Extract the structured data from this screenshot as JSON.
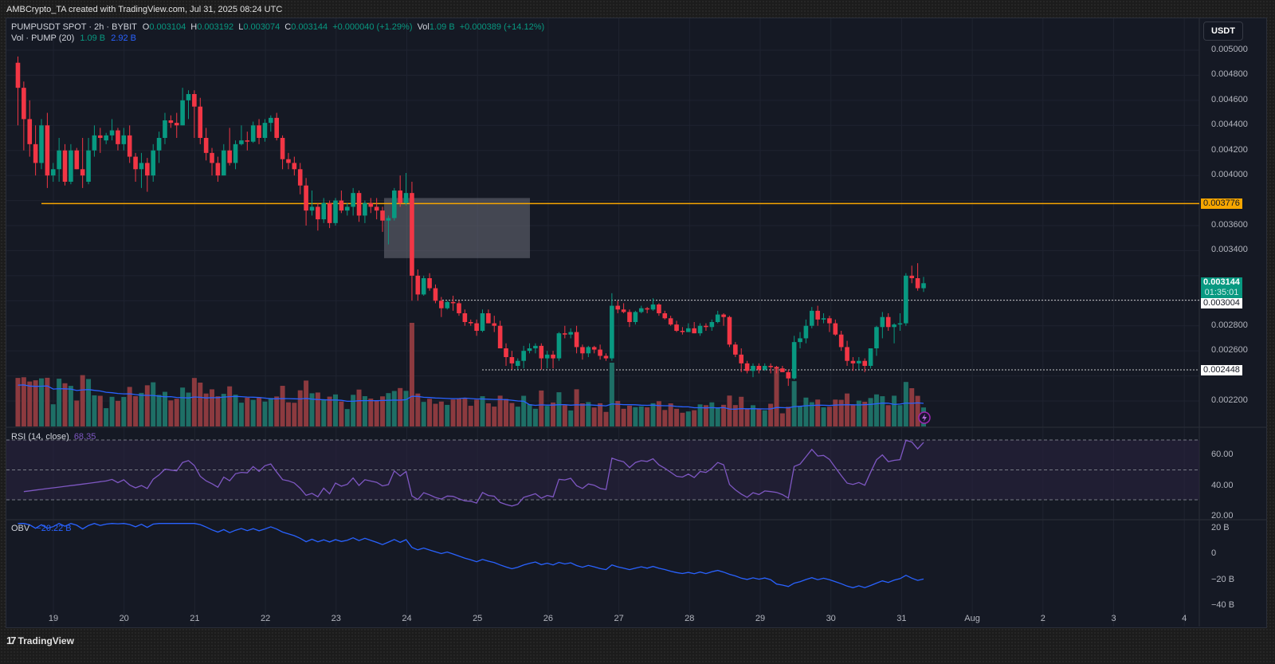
{
  "header": {
    "attribution": "AMBCrypto_TA created with TradingView.com, Jul 31, 2025 08:24 UTC"
  },
  "legend": {
    "symbol": "PUMPUSDT SPOT · 2h · BYBIT",
    "o_label": "O",
    "o": "0.003104",
    "h_label": "H",
    "h": "0.003192",
    "l_label": "L",
    "l": "0.003074",
    "c_label": "C",
    "c": "0.003144",
    "change": "+0.000040 (+1.29%)",
    "vol_label": "Vol",
    "vol": "1.09 B",
    "vol_change": "+0.000389 (+14.12%)",
    "vol_indicator": "Vol · PUMP (20)",
    "vol_value": "1.09 B",
    "vol_ma": "2.92 B"
  },
  "price_axis": {
    "unit": "USDT",
    "ticks": [
      "0.005000",
      "0.004800",
      "0.004600",
      "0.004400",
      "0.004200",
      "0.004000",
      "0.003600",
      "0.003400",
      "0.002800",
      "0.002600",
      "0.002200"
    ],
    "tick_values": [
      0.005,
      0.0048,
      0.0046,
      0.0044,
      0.0042,
      0.004,
      0.0036,
      0.0034,
      0.0028,
      0.0026,
      0.0022
    ],
    "tags": {
      "horizontal_line": "0.003776",
      "last_price": "0.003144",
      "countdown": "01:35:01",
      "resistance": "0.003004",
      "support": "0.002448"
    }
  },
  "rsi": {
    "label": "RSI (14, close)",
    "value": "68.35",
    "ticks": [
      "60.00",
      "40.00",
      "20.00"
    ]
  },
  "obv": {
    "label": "OBV",
    "value": "−20.22 B",
    "ticks": [
      "20 B",
      "0",
      "−20 B",
      "−40 B"
    ]
  },
  "time_axis": {
    "labels": [
      "19",
      "20",
      "21",
      "22",
      "23",
      "24",
      "25",
      "26",
      "27",
      "28",
      "29",
      "30",
      "31",
      "Aug",
      "2",
      "3",
      "4"
    ]
  },
  "footer": {
    "brand": "TradingView"
  },
  "colors": {
    "up": "#089981",
    "down": "#f23645",
    "vol_up": "#22ab94",
    "vol_down": "#f7525f",
    "hline": "#f7a600",
    "rsi": "#7e57c2",
    "obv": "#2962ff",
    "vol_ma": "#2962ff"
  },
  "chart_data": {
    "type": "candlestick",
    "title": "PUMPUSDT SPOT · 2h · BYBIT",
    "xlabel": "",
    "ylabel": "USDT",
    "ylim": [
      0.00205,
      0.0051
    ],
    "grid": true,
    "annotations": [
      {
        "type": "hline",
        "value": 0.003776,
        "color": "#f7a600",
        "from_date": "Jul 18"
      },
      {
        "type": "dotted_hline",
        "value": 0.003004,
        "from_date": "Jul 24"
      },
      {
        "type": "dotted_hline",
        "value": 0.002448,
        "from_date": "Jul 25"
      },
      {
        "type": "rect",
        "label": "gray zone",
        "y_top": 0.00382,
        "y_bottom": 0.00334,
        "from_date": "Jul 23 ~16:00",
        "to_date": "Jul 25 ~18:00"
      }
    ],
    "candles": [
      [
        0.0049,
        0.00495,
        0.0044,
        0.0047
      ],
      [
        0.0047,
        0.00475,
        0.0042,
        0.00445
      ],
      [
        0.00445,
        0.0046,
        0.00415,
        0.00425
      ],
      [
        0.00425,
        0.0044,
        0.004,
        0.0041
      ],
      [
        0.0041,
        0.00445,
        0.00405,
        0.0044
      ],
      [
        0.0044,
        0.0045,
        0.0039,
        0.004
      ],
      [
        0.004,
        0.0041,
        0.00395,
        0.00405
      ],
      [
        0.00405,
        0.0043,
        0.00395,
        0.0042
      ],
      [
        0.0042,
        0.00425,
        0.00392,
        0.00395
      ],
      [
        0.00395,
        0.00425,
        0.00393,
        0.0042
      ],
      [
        0.0042,
        0.00422,
        0.00405,
        0.00405
      ],
      [
        0.00405,
        0.0043,
        0.0039,
        0.004
      ],
      [
        0.00395,
        0.0043,
        0.00393,
        0.0042
      ],
      [
        0.0042,
        0.0044,
        0.00415,
        0.00432
      ],
      [
        0.00432,
        0.00438,
        0.00418,
        0.0043
      ],
      [
        0.00428,
        0.00434,
        0.00425,
        0.00432
      ],
      [
        0.00432,
        0.00445,
        0.00428,
        0.00436
      ],
      [
        0.00436,
        0.00438,
        0.0042,
        0.00425
      ],
      [
        0.00425,
        0.00438,
        0.0042,
        0.00432
      ],
      [
        0.00432,
        0.0044,
        0.0041,
        0.00415
      ],
      [
        0.00415,
        0.00418,
        0.00395,
        0.00405
      ],
      [
        0.00405,
        0.00418,
        0.0039,
        0.0041
      ],
      [
        0.0041,
        0.00414,
        0.00387,
        0.004
      ],
      [
        0.004,
        0.00425,
        0.00395,
        0.0042
      ],
      [
        0.0042,
        0.00435,
        0.0041,
        0.0043
      ],
      [
        0.0043,
        0.0045,
        0.00425,
        0.00444
      ],
      [
        0.00444,
        0.00448,
        0.00438,
        0.00442
      ],
      [
        0.00442,
        0.0045,
        0.0043,
        0.0044
      ],
      [
        0.0044,
        0.0047,
        0.0044,
        0.0046
      ],
      [
        0.0046,
        0.00468,
        0.00445,
        0.00465
      ],
      [
        0.00465,
        0.00468,
        0.0043,
        0.00455
      ],
      [
        0.00455,
        0.00462,
        0.00425,
        0.0043
      ],
      [
        0.0043,
        0.00438,
        0.00412,
        0.00418
      ],
      [
        0.00418,
        0.00422,
        0.004,
        0.0041
      ],
      [
        0.0041,
        0.00415,
        0.00395,
        0.004
      ],
      [
        0.004,
        0.00425,
        0.004,
        0.0042
      ],
      [
        0.0042,
        0.00438,
        0.00408,
        0.0041
      ],
      [
        0.0041,
        0.00428,
        0.00405,
        0.00425
      ],
      [
        0.00425,
        0.0044,
        0.00424,
        0.00428
      ],
      [
        0.00428,
        0.00435,
        0.0042,
        0.00427
      ],
      [
        0.00427,
        0.00443,
        0.00426,
        0.0044
      ],
      [
        0.0044,
        0.00445,
        0.00425,
        0.0043
      ],
      [
        0.0043,
        0.00445,
        0.00427,
        0.00442
      ],
      [
        0.00442,
        0.00448,
        0.00435,
        0.00446
      ],
      [
        0.00446,
        0.0045,
        0.00428,
        0.0043
      ],
      [
        0.0043,
        0.00432,
        0.00405,
        0.00413
      ],
      [
        0.00413,
        0.00418,
        0.00405,
        0.0041
      ],
      [
        0.0041,
        0.00415,
        0.004,
        0.00405
      ],
      [
        0.00405,
        0.0041,
        0.00385,
        0.00392
      ],
      [
        0.00392,
        0.00398,
        0.0036,
        0.00372
      ],
      [
        0.00372,
        0.00388,
        0.00368,
        0.00375
      ],
      [
        0.00375,
        0.00378,
        0.00356,
        0.00365
      ],
      [
        0.00365,
        0.00382,
        0.00362,
        0.00378
      ],
      [
        0.00378,
        0.0038,
        0.00358,
        0.00362
      ],
      [
        0.00362,
        0.00382,
        0.0036,
        0.0038
      ],
      [
        0.0038,
        0.00388,
        0.0037,
        0.00372
      ],
      [
        0.00372,
        0.00378,
        0.00368,
        0.00375
      ],
      [
        0.00375,
        0.0039,
        0.00368,
        0.00386
      ],
      [
        0.00386,
        0.00388,
        0.00363,
        0.00368
      ],
      [
        0.00368,
        0.0038,
        0.00362,
        0.00378
      ],
      [
        0.00378,
        0.00382,
        0.0037,
        0.00375
      ],
      [
        0.00375,
        0.00382,
        0.00365,
        0.00372
      ],
      [
        0.00372,
        0.00375,
        0.00355,
        0.00364
      ],
      [
        0.00364,
        0.00368,
        0.00345,
        0.00366
      ],
      [
        0.00366,
        0.0039,
        0.00364,
        0.00388
      ],
      [
        0.00388,
        0.004,
        0.00375,
        0.00378
      ],
      [
        0.00378,
        0.00402,
        0.00376,
        0.00386
      ],
      [
        0.00386,
        0.00395,
        0.003,
        0.0032
      ],
      [
        0.0032,
        0.00325,
        0.003,
        0.00305
      ],
      [
        0.00305,
        0.0032,
        0.00304,
        0.00318
      ],
      [
        0.00318,
        0.00322,
        0.00308,
        0.0031
      ],
      [
        0.0031,
        0.00313,
        0.00298,
        0.003
      ],
      [
        0.003,
        0.00303,
        0.00287,
        0.00294
      ],
      [
        0.00294,
        0.003,
        0.00293,
        0.00299
      ],
      [
        0.00299,
        0.00304,
        0.00292,
        0.00298
      ],
      [
        0.00298,
        0.003,
        0.00288,
        0.0029
      ],
      [
        0.0029,
        0.00293,
        0.0028,
        0.00283
      ],
      [
        0.00283,
        0.00285,
        0.0028,
        0.00282
      ],
      [
        0.00282,
        0.00285,
        0.00272,
        0.00276
      ],
      [
        0.00276,
        0.00293,
        0.00275,
        0.0029
      ],
      [
        0.0029,
        0.00293,
        0.00282,
        0.00282
      ],
      [
        0.00282,
        0.00288,
        0.00275,
        0.0028
      ],
      [
        0.0028,
        0.00284,
        0.00262,
        0.00262
      ],
      [
        0.00262,
        0.00266,
        0.00248,
        0.00255
      ],
      [
        0.00255,
        0.0026,
        0.00245,
        0.0025
      ],
      [
        0.00248,
        0.00254,
        0.00245,
        0.00252
      ],
      [
        0.00252,
        0.00264,
        0.00246,
        0.0026
      ],
      [
        0.0026,
        0.00266,
        0.00258,
        0.00262
      ],
      [
        0.00262,
        0.00266,
        0.00258,
        0.00264
      ],
      [
        0.00264,
        0.00266,
        0.00245,
        0.00254
      ],
      [
        0.00254,
        0.0026,
        0.00246,
        0.00257
      ],
      [
        0.00257,
        0.0026,
        0.00246,
        0.00254
      ],
      [
        0.00254,
        0.00275,
        0.00252,
        0.00274
      ],
      [
        0.00274,
        0.0028,
        0.0027,
        0.00273
      ],
      [
        0.00273,
        0.00278,
        0.0027,
        0.00275
      ],
      [
        0.00275,
        0.0028,
        0.00258,
        0.00263
      ],
      [
        0.00263,
        0.00265,
        0.00253,
        0.00258
      ],
      [
        0.00258,
        0.00264,
        0.00255,
        0.00263
      ],
      [
        0.00263,
        0.00264,
        0.00258,
        0.00261
      ],
      [
        0.00261,
        0.00265,
        0.00253,
        0.00256
      ],
      [
        0.00256,
        0.00258,
        0.00252,
        0.00254
      ],
      [
        0.00254,
        0.00306,
        0.00252,
        0.00296
      ],
      [
        0.00296,
        0.003,
        0.0029,
        0.00293
      ],
      [
        0.00293,
        0.00298,
        0.0029,
        0.00291
      ],
      [
        0.00291,
        0.00293,
        0.00279,
        0.00283
      ],
      [
        0.00283,
        0.00292,
        0.00281,
        0.00291
      ],
      [
        0.00291,
        0.00296,
        0.0029,
        0.00294
      ],
      [
        0.00294,
        0.00295,
        0.0029,
        0.00293
      ],
      [
        0.00293,
        0.00302,
        0.00292,
        0.00297
      ],
      [
        0.00297,
        0.00298,
        0.00288,
        0.0029
      ],
      [
        0.0029,
        0.00292,
        0.00285,
        0.00286
      ],
      [
        0.00286,
        0.00288,
        0.0028,
        0.00281
      ],
      [
        0.00281,
        0.00284,
        0.00275,
        0.00276
      ],
      [
        0.00276,
        0.00279,
        0.00273,
        0.00275
      ],
      [
        0.00275,
        0.00282,
        0.00275,
        0.00278
      ],
      [
        0.00278,
        0.00283,
        0.00274,
        0.00274
      ],
      [
        0.00274,
        0.00282,
        0.00272,
        0.0028
      ],
      [
        0.0028,
        0.00282,
        0.00276,
        0.00279
      ],
      [
        0.00279,
        0.00285,
        0.00276,
        0.00283
      ],
      [
        0.00283,
        0.00292,
        0.00282,
        0.00289
      ],
      [
        0.00289,
        0.0029,
        0.0028,
        0.00287
      ],
      [
        0.00287,
        0.00288,
        0.00263,
        0.00265
      ],
      [
        0.00265,
        0.00267,
        0.00255,
        0.00257
      ],
      [
        0.00257,
        0.00262,
        0.00243,
        0.0025
      ],
      [
        0.0025,
        0.00252,
        0.00242,
        0.00244
      ],
      [
        0.00244,
        0.0025,
        0.00239,
        0.00248
      ],
      [
        0.00248,
        0.0025,
        0.00242,
        0.00245
      ],
      [
        0.00245,
        0.0025,
        0.00244,
        0.00248
      ],
      [
        0.00248,
        0.0025,
        0.00242,
        0.00247
      ],
      [
        0.00247,
        0.00248,
        0.00242,
        0.00246
      ],
      [
        0.00246,
        0.00248,
        0.00244,
        0.00243
      ],
      [
        0.00243,
        0.00245,
        0.00232,
        0.00238
      ],
      [
        0.00238,
        0.00272,
        0.00237,
        0.00267
      ],
      [
        0.00267,
        0.00275,
        0.00262,
        0.0027
      ],
      [
        0.0027,
        0.00285,
        0.00266,
        0.0028
      ],
      [
        0.0028,
        0.00295,
        0.00278,
        0.00292
      ],
      [
        0.00292,
        0.00296,
        0.0028,
        0.00285
      ],
      [
        0.00285,
        0.0029,
        0.00282,
        0.00286
      ],
      [
        0.00286,
        0.00288,
        0.00275,
        0.00282
      ],
      [
        0.00282,
        0.00285,
        0.00272,
        0.00273
      ],
      [
        0.00273,
        0.00276,
        0.0026,
        0.00263
      ],
      [
        0.00263,
        0.00268,
        0.00248,
        0.00252
      ],
      [
        0.00252,
        0.00255,
        0.00244,
        0.0025
      ],
      [
        0.0025,
        0.00255,
        0.00245,
        0.00252
      ],
      [
        0.00252,
        0.00254,
        0.00243,
        0.00248
      ],
      [
        0.00248,
        0.00262,
        0.00246,
        0.00262
      ],
      [
        0.00262,
        0.0028,
        0.00256,
        0.00279
      ],
      [
        0.00279,
        0.00291,
        0.0027,
        0.00287
      ],
      [
        0.00287,
        0.0029,
        0.00276,
        0.00279
      ],
      [
        0.00279,
        0.00282,
        0.00266,
        0.00281
      ],
      [
        0.00281,
        0.0029,
        0.00276,
        0.00282
      ],
      [
        0.00282,
        0.00322,
        0.0028,
        0.0032
      ],
      [
        0.0032,
        0.00328,
        0.00314,
        0.00318
      ],
      [
        0.00318,
        0.0033,
        0.00308,
        0.0031
      ],
      [
        0.0031,
        0.00319,
        0.00307,
        0.00314
      ]
    ],
    "volume_ma_note": "Vol SMA(20) line in blue",
    "rsi_last": 68.35,
    "obv_last_B": -20.22
  }
}
